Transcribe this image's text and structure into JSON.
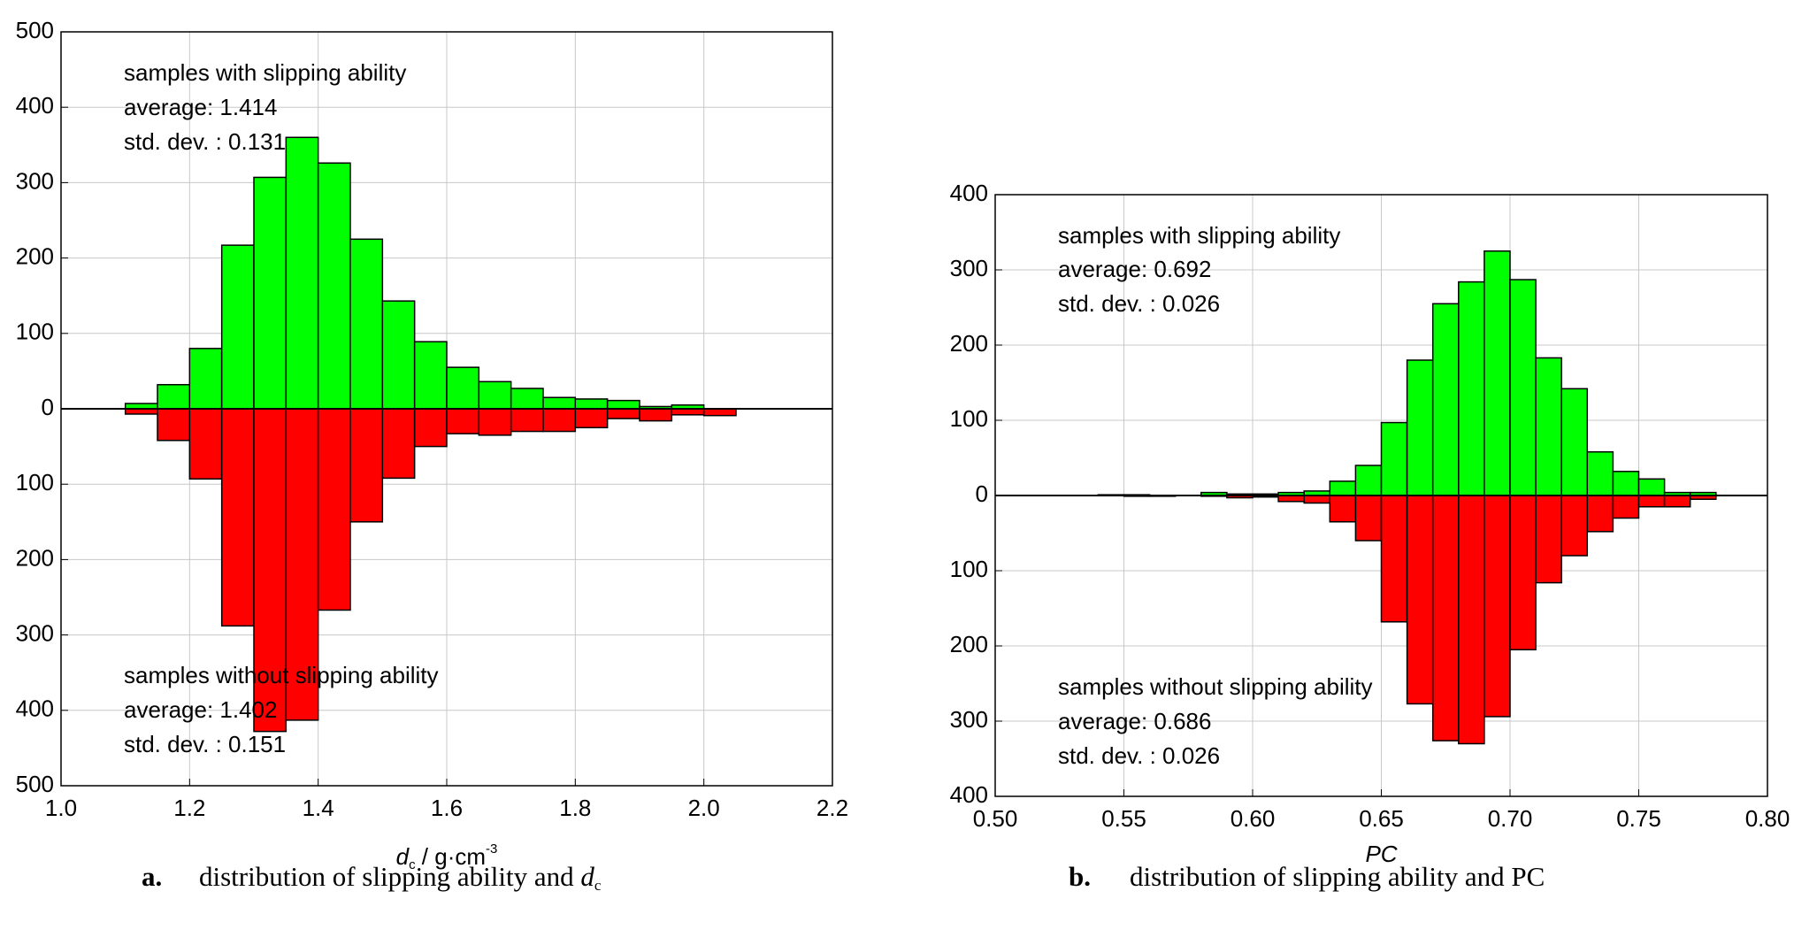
{
  "chart_data": [
    {
      "type": "histogram",
      "xlabel_parts": [
        "d",
        "c",
        " / g·cm",
        "-3"
      ],
      "caption_label": "a.",
      "caption_parts": [
        "distribution of slipping ability and ",
        "d",
        "c"
      ],
      "annotations": [
        [
          "samples with slipping ability",
          "average: 1.414",
          "std. dev. : 0.131"
        ],
        [
          "samples without slipping ability",
          "average: 1.402",
          "std. dev. : 0.151"
        ]
      ],
      "bins": [
        1.1,
        1.15,
        1.2,
        1.25,
        1.3,
        1.35,
        1.4,
        1.45,
        1.5,
        1.55,
        1.6,
        1.65,
        1.7,
        1.75,
        1.8,
        1.85,
        1.9,
        1.95,
        2.0,
        2.05
      ],
      "series": [
        {
          "color": "#00ff00",
          "values": [
            7,
            32,
            80,
            217,
            307,
            360,
            326,
            225,
            143,
            89,
            55,
            36,
            27,
            15,
            13,
            11,
            3,
            5,
            0
          ]
        },
        {
          "color": "#ff0000",
          "values": [
            -7,
            -42,
            -93,
            -288,
            -428,
            -413,
            -267,
            -150,
            -92,
            -50,
            -33,
            -35,
            -30,
            -30,
            -25,
            -13,
            -16,
            -8,
            -9
          ]
        }
      ],
      "xlim": [
        1.0,
        2.2
      ],
      "xticks": [
        {
          "value": 1.0,
          "label": "1.0"
        },
        1.2,
        1.4,
        1.6,
        1.8,
        {
          "value": 2.0,
          "label": "2.0"
        },
        2.2
      ],
      "ylim": [
        -500,
        500
      ],
      "yticks": [
        500,
        400,
        300,
        200,
        100,
        0,
        {
          "value": -100,
          "label": "100"
        },
        {
          "value": -200,
          "label": "200"
        },
        {
          "value": -300,
          "label": "300"
        },
        {
          "value": -400,
          "label": "400"
        },
        {
          "value": -500,
          "label": "500"
        }
      ],
      "grid": true
    },
    {
      "type": "histogram",
      "xlabel_parts": [
        "PC"
      ],
      "caption_label": "b.",
      "caption_parts": [
        "distribution of slipping ability and PC"
      ],
      "annotations": [
        [
          "samples with slipping ability",
          "average: 0.692",
          "std. dev. : 0.026"
        ],
        [
          "samples without slipping ability",
          "average: 0.686",
          "std. dev. : 0.026"
        ]
      ],
      "bins": [
        0.54,
        0.55,
        0.56,
        0.57,
        0.58,
        0.59,
        0.6,
        0.61,
        0.62,
        0.63,
        0.64,
        0.65,
        0.66,
        0.67,
        0.68,
        0.69,
        0.7,
        0.71,
        0.72,
        0.73,
        0.74,
        0.75,
        0.76,
        0.77,
        0.78
      ],
      "series": [
        {
          "color": "#00ff00",
          "values": [
            1,
            1,
            0,
            0,
            4,
            2,
            2,
            4,
            6,
            19,
            40,
            97,
            180,
            255,
            284,
            325,
            287,
            183,
            142,
            58,
            32,
            22,
            4,
            4
          ]
        },
        {
          "color": "#ff0000",
          "values": [
            0,
            -1,
            -1,
            0,
            -1,
            -3,
            -2,
            -8,
            -10,
            -35,
            -60,
            -168,
            -277,
            -326,
            -330,
            -294,
            -205,
            -116,
            -80,
            -48,
            -30,
            -15,
            -15,
            -5
          ]
        }
      ],
      "xlim": [
        0.5,
        0.8
      ],
      "xticks": [
        {
          "value": 0.5,
          "label": "0.50"
        },
        0.55,
        {
          "value": 0.6,
          "label": "0.60"
        },
        0.65,
        {
          "value": 0.7,
          "label": "0.70"
        },
        0.75,
        {
          "value": 0.8,
          "label": "0.80"
        }
      ],
      "ylim": [
        -400,
        400
      ],
      "yticks": [
        400,
        300,
        200,
        100,
        0,
        {
          "value": -100,
          "label": "100"
        },
        {
          "value": -200,
          "label": "200"
        },
        {
          "value": -300,
          "label": "300"
        },
        {
          "value": -400,
          "label": "400"
        }
      ],
      "grid": true
    }
  ]
}
